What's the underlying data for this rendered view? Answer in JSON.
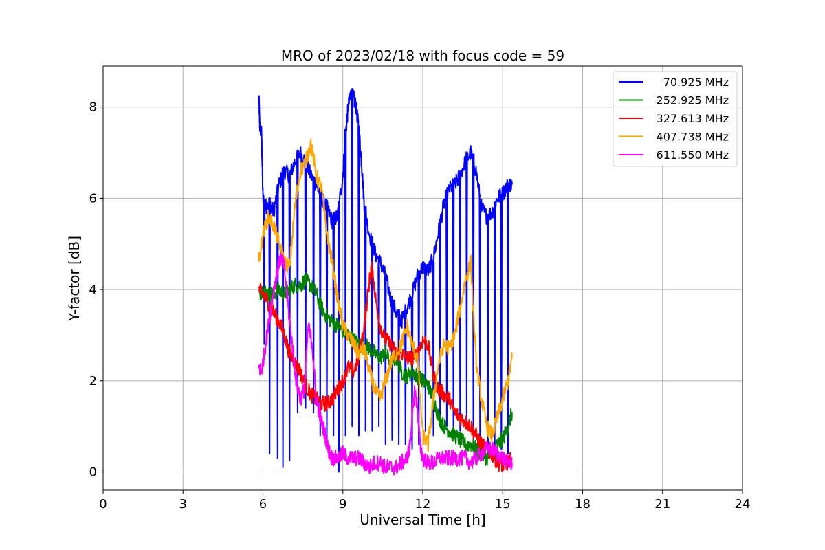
{
  "chart_data": {
    "type": "line",
    "title": "MRO of 2023/02/18 with focus code = 59",
    "xlabel": "Universal Time [h]",
    "ylabel": "Y-factor [dB]",
    "xlim": [
      0,
      24
    ],
    "ylim": [
      -0.4,
      8.9
    ],
    "xticks": [
      0,
      3,
      6,
      9,
      12,
      15,
      18,
      21,
      24
    ],
    "yticks": [
      0,
      2,
      4,
      6,
      8
    ],
    "grid": true,
    "legend_position": "top-right",
    "series": [
      {
        "name": "70.925 MHz",
        "color": "#0000ff",
        "x": [
          5.85,
          5.88,
          5.95,
          6.0,
          6.1,
          6.25,
          6.4,
          6.6,
          6.8,
          7.0,
          7.2,
          7.4,
          7.6,
          7.8,
          8.0,
          8.2,
          8.4,
          8.6,
          8.8,
          9.0,
          9.1,
          9.2,
          9.3,
          9.4,
          9.5,
          9.6,
          9.7,
          9.8,
          10.0,
          10.2,
          10.4,
          10.6,
          10.8,
          11.0,
          11.2,
          11.4,
          11.6,
          11.8,
          12.0,
          12.2,
          12.4,
          12.6,
          12.8,
          13.0,
          13.2,
          13.4,
          13.6,
          13.8,
          14.0,
          14.2,
          14.4,
          14.6,
          14.8,
          15.0,
          15.2,
          15.35
        ],
        "y": [
          8.2,
          7.6,
          7.4,
          6.0,
          5.8,
          5.9,
          5.7,
          6.3,
          6.6,
          6.5,
          6.8,
          7.0,
          6.8,
          6.5,
          6.3,
          6.0,
          5.8,
          5.5,
          5.6,
          6.5,
          7.4,
          8.0,
          8.3,
          8.2,
          8.0,
          7.5,
          6.8,
          5.9,
          5.2,
          4.8,
          4.6,
          4.3,
          3.8,
          3.5,
          3.3,
          3.6,
          3.9,
          4.3,
          4.5,
          4.4,
          4.7,
          5.3,
          5.9,
          6.2,
          6.3,
          6.5,
          6.8,
          7.0,
          6.6,
          5.8,
          5.6,
          5.7,
          6.0,
          6.1,
          6.3,
          6.3
        ],
        "dropouts": [
          {
            "x": 6.05,
            "y": 2.8
          },
          {
            "x": 6.25,
            "y": 0.4
          },
          {
            "x": 6.55,
            "y": 0.3
          },
          {
            "x": 6.75,
            "y": 0.1
          },
          {
            "x": 7.0,
            "y": 0.25
          },
          {
            "x": 7.3,
            "y": 1.3
          },
          {
            "x": 7.6,
            "y": 1.4
          },
          {
            "x": 7.9,
            "y": 1.3
          },
          {
            "x": 8.15,
            "y": 0.8
          },
          {
            "x": 8.4,
            "y": 0.7
          },
          {
            "x": 8.65,
            "y": 0.8
          },
          {
            "x": 8.85,
            "y": 0.0
          },
          {
            "x": 9.1,
            "y": 0.8
          },
          {
            "x": 9.35,
            "y": 1.0
          },
          {
            "x": 9.6,
            "y": 0.8
          },
          {
            "x": 9.85,
            "y": 0.9
          },
          {
            "x": 10.1,
            "y": 0.9
          },
          {
            "x": 10.35,
            "y": 1.0
          },
          {
            "x": 10.6,
            "y": 0.6
          },
          {
            "x": 10.85,
            "y": 0.7
          },
          {
            "x": 11.1,
            "y": 0.6
          },
          {
            "x": 11.35,
            "y": 0.6
          },
          {
            "x": 11.6,
            "y": 0.5
          },
          {
            "x": 11.85,
            "y": 0.6
          },
          {
            "x": 12.1,
            "y": 0.9
          },
          {
            "x": 12.4,
            "y": 0.8
          },
          {
            "x": 12.65,
            "y": 1.0
          },
          {
            "x": 12.9,
            "y": 1.0
          },
          {
            "x": 13.15,
            "y": 1.0
          },
          {
            "x": 13.4,
            "y": 0.9
          },
          {
            "x": 13.65,
            "y": 1.1
          },
          {
            "x": 13.9,
            "y": 0.7
          },
          {
            "x": 14.15,
            "y": 0.5
          },
          {
            "x": 14.45,
            "y": 0.4
          },
          {
            "x": 14.7,
            "y": 0.5
          },
          {
            "x": 14.95,
            "y": 0.5
          },
          {
            "x": 15.2,
            "y": 0.4
          }
        ]
      },
      {
        "name": "252.925 MHz",
        "color": "#008000",
        "x": [
          5.85,
          6.0,
          6.2,
          6.4,
          6.6,
          6.8,
          7.0,
          7.2,
          7.4,
          7.6,
          7.8,
          8.0,
          8.2,
          8.4,
          8.6,
          8.8,
          9.0,
          9.2,
          9.4,
          9.6,
          9.8,
          10.0,
          10.2,
          10.4,
          10.6,
          10.8,
          11.0,
          11.2,
          11.4,
          11.6,
          11.8,
          12.0,
          12.2,
          12.4,
          12.6,
          12.8,
          13.0,
          13.2,
          13.4,
          13.6,
          13.8,
          14.0,
          14.2,
          14.4,
          14.6,
          14.8,
          15.0,
          15.2,
          15.35
        ],
        "y": [
          3.9,
          4.0,
          3.9,
          3.9,
          4.0,
          3.9,
          4.0,
          4.1,
          4.1,
          4.2,
          4.1,
          3.9,
          3.6,
          3.4,
          3.3,
          3.2,
          3.1,
          3.0,
          2.9,
          2.8,
          2.8,
          2.7,
          2.6,
          2.5,
          2.6,
          2.4,
          2.5,
          2.2,
          2.1,
          2.2,
          2.1,
          2.0,
          1.9,
          1.6,
          1.2,
          1.0,
          0.9,
          0.8,
          0.7,
          0.6,
          0.6,
          0.5,
          0.4,
          0.3,
          0.4,
          0.6,
          0.7,
          1.0,
          1.3
        ]
      },
      {
        "name": "327.613 MHz",
        "color": "#ff0000",
        "x": [
          5.85,
          6.0,
          6.2,
          6.4,
          6.6,
          6.8,
          7.0,
          7.2,
          7.4,
          7.6,
          7.8,
          8.0,
          8.2,
          8.4,
          8.6,
          8.8,
          9.0,
          9.2,
          9.4,
          9.6,
          9.8,
          10.0,
          10.1,
          10.2,
          10.4,
          10.6,
          10.8,
          11.0,
          11.2,
          11.4,
          11.6,
          11.8,
          12.0,
          12.2,
          12.4,
          12.6,
          12.8,
          13.0,
          13.2,
          13.4,
          13.6,
          13.8,
          14.0,
          14.2,
          14.4,
          14.6,
          14.8,
          15.0,
          15.2,
          15.35
        ],
        "y": [
          4.0,
          3.9,
          3.7,
          3.5,
          3.3,
          3.0,
          2.6,
          2.4,
          2.2,
          1.9,
          1.7,
          1.6,
          1.5,
          1.5,
          1.6,
          1.8,
          2.0,
          2.3,
          2.2,
          2.5,
          3.2,
          4.2,
          4.5,
          3.9,
          3.2,
          2.9,
          2.8,
          2.6,
          2.6,
          2.5,
          2.5,
          2.6,
          2.9,
          2.8,
          2.1,
          1.8,
          1.7,
          1.6,
          1.3,
          1.2,
          1.1,
          1.0,
          0.8,
          0.6,
          0.5,
          0.4,
          0.2,
          0.15,
          0.2,
          0.3
        ]
      },
      {
        "name": "407.738 MHz",
        "color": "#ffa500",
        "x": [
          5.85,
          6.0,
          6.2,
          6.4,
          6.6,
          6.8,
          7.0,
          7.2,
          7.4,
          7.6,
          7.8,
          8.0,
          8.2,
          8.4,
          8.6,
          8.8,
          9.0,
          9.2,
          9.4,
          9.6,
          9.8,
          10.0,
          10.2,
          10.4,
          10.6,
          10.8,
          11.0,
          11.2,
          11.4,
          11.6,
          11.8,
          12.0,
          12.2,
          12.4,
          12.6,
          12.8,
          13.0,
          13.2,
          13.4,
          13.6,
          13.8,
          14.0,
          14.2,
          14.4,
          14.6,
          14.8,
          15.0,
          15.2,
          15.35
        ],
        "y": [
          4.6,
          5.2,
          5.6,
          5.4,
          5.0,
          4.6,
          4.5,
          5.8,
          6.6,
          6.8,
          7.2,
          6.5,
          6.2,
          5.2,
          4.6,
          3.8,
          3.2,
          3.0,
          2.8,
          2.6,
          2.7,
          2.2,
          1.8,
          1.6,
          2.0,
          2.4,
          2.6,
          2.8,
          3.2,
          2.8,
          2.5,
          0.8,
          0.6,
          1.6,
          2.4,
          2.8,
          2.7,
          3.0,
          3.6,
          4.2,
          4.6,
          2.4,
          1.6,
          1.0,
          0.8,
          1.2,
          1.6,
          2.0,
          2.5
        ]
      },
      {
        "name": "611.550 MHz",
        "color": "#ff00ff",
        "x": [
          5.85,
          5.95,
          6.05,
          6.2,
          6.35,
          6.5,
          6.65,
          6.8,
          6.95,
          7.1,
          7.25,
          7.4,
          7.55,
          7.7,
          7.85,
          8.0,
          8.15,
          8.3,
          8.45,
          8.6,
          8.8,
          9.0,
          9.2,
          9.4,
          9.6,
          9.8,
          10.0,
          10.2,
          10.4,
          10.6,
          10.8,
          11.0,
          11.2,
          11.4,
          11.5,
          11.6,
          11.7,
          11.8,
          11.9,
          12.0,
          12.2,
          12.4,
          12.6,
          12.8,
          13.0,
          13.2,
          13.4,
          13.6,
          13.8,
          14.0,
          14.2,
          14.4,
          14.6,
          14.8,
          15.0,
          15.2,
          15.35
        ],
        "y": [
          2.3,
          2.2,
          2.6,
          3.2,
          3.8,
          4.3,
          4.7,
          4.5,
          3.6,
          2.8,
          2.0,
          1.6,
          1.8,
          3.2,
          2.8,
          1.6,
          1.2,
          0.9,
          0.5,
          0.3,
          0.3,
          0.4,
          0.3,
          0.3,
          0.3,
          0.2,
          0.1,
          0.2,
          0.2,
          0.1,
          0.1,
          0.1,
          0.2,
          0.3,
          0.5,
          1.2,
          1.8,
          1.4,
          0.6,
          0.3,
          0.2,
          0.2,
          0.3,
          0.3,
          0.3,
          0.3,
          0.3,
          0.3,
          0.2,
          0.3,
          0.4,
          0.5,
          0.5,
          0.4,
          0.3,
          0.2,
          0.2
        ]
      }
    ]
  }
}
